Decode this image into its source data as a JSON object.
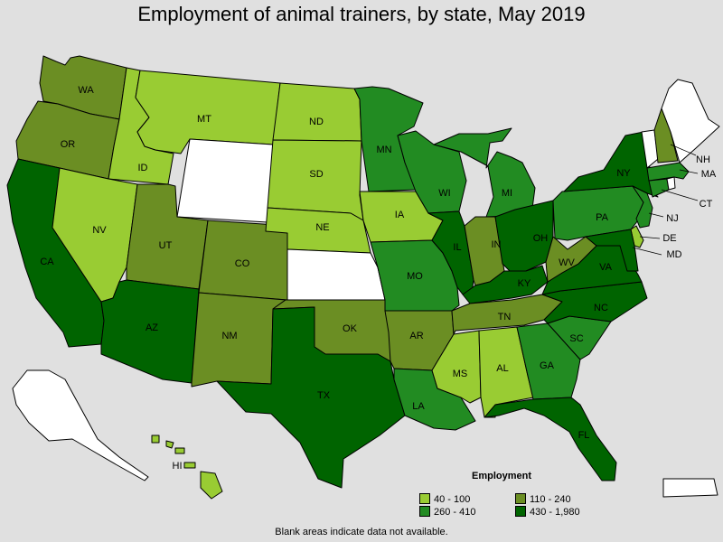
{
  "title": "Employment of animal trainers, by state, May 2019",
  "footnote": "Blank areas indicate data not available.",
  "legend": {
    "title": "Employment",
    "items": [
      {
        "label": "40 - 100",
        "color": "#99cc33"
      },
      {
        "label": "110 - 240",
        "color": "#6b8e23"
      },
      {
        "label": "260 - 410",
        "color": "#228b22"
      },
      {
        "label": "430 - 1,980",
        "color": "#006400"
      }
    ]
  },
  "chart_data": {
    "type": "choropleth",
    "no_data_color": "#ffffff",
    "classes": [
      "40 - 100",
      "110 - 240",
      "260 - 410",
      "430 - 1,980"
    ],
    "states": [
      {
        "abbr": "WA",
        "class": "110 - 240"
      },
      {
        "abbr": "OR",
        "class": "110 - 240"
      },
      {
        "abbr": "CA",
        "class": "430 - 1,980"
      },
      {
        "abbr": "ID",
        "class": "40 - 100"
      },
      {
        "abbr": "NV",
        "class": "40 - 100"
      },
      {
        "abbr": "MT",
        "class": "40 - 100"
      },
      {
        "abbr": "WY",
        "class": null
      },
      {
        "abbr": "UT",
        "class": "110 - 240"
      },
      {
        "abbr": "AZ",
        "class": "430 - 1,980"
      },
      {
        "abbr": "CO",
        "class": "110 - 240"
      },
      {
        "abbr": "NM",
        "class": "110 - 240"
      },
      {
        "abbr": "ND",
        "class": "40 - 100"
      },
      {
        "abbr": "SD",
        "class": "40 - 100"
      },
      {
        "abbr": "NE",
        "class": "40 - 100"
      },
      {
        "abbr": "KS",
        "class": null
      },
      {
        "abbr": "OK",
        "class": "110 - 240"
      },
      {
        "abbr": "TX",
        "class": "430 - 1,980"
      },
      {
        "abbr": "MN",
        "class": "260 - 410"
      },
      {
        "abbr": "IA",
        "class": "40 - 100"
      },
      {
        "abbr": "MO",
        "class": "260 - 410"
      },
      {
        "abbr": "AR",
        "class": "110 - 240"
      },
      {
        "abbr": "LA",
        "class": "260 - 410"
      },
      {
        "abbr": "WI",
        "class": "260 - 410"
      },
      {
        "abbr": "IL",
        "class": "430 - 1,980"
      },
      {
        "abbr": "MI",
        "class": "260 - 410"
      },
      {
        "abbr": "IN",
        "class": "110 - 240"
      },
      {
        "abbr": "OH",
        "class": "430 - 1,980"
      },
      {
        "abbr": "KY",
        "class": "430 - 1,980"
      },
      {
        "abbr": "TN",
        "class": "110 - 240"
      },
      {
        "abbr": "MS",
        "class": "40 - 100"
      },
      {
        "abbr": "AL",
        "class": "40 - 100"
      },
      {
        "abbr": "GA",
        "class": "260 - 410"
      },
      {
        "abbr": "FL",
        "class": "430 - 1,980"
      },
      {
        "abbr": "SC",
        "class": "260 - 410"
      },
      {
        "abbr": "NC",
        "class": "430 - 1,980"
      },
      {
        "abbr": "VA",
        "class": "430 - 1,980"
      },
      {
        "abbr": "WV",
        "class": "110 - 240"
      },
      {
        "abbr": "PA",
        "class": "260 - 410"
      },
      {
        "abbr": "NY",
        "class": "430 - 1,980"
      },
      {
        "abbr": "NJ",
        "class": "260 - 410"
      },
      {
        "abbr": "DE",
        "class": "40 - 100"
      },
      {
        "abbr": "MD",
        "class": "430 - 1,980"
      },
      {
        "abbr": "CT",
        "class": "260 - 410"
      },
      {
        "abbr": "MA",
        "class": "260 - 410"
      },
      {
        "abbr": "VT",
        "class": null
      },
      {
        "abbr": "NH",
        "class": "110 - 240"
      },
      {
        "abbr": "ME",
        "class": null
      },
      {
        "abbr": "RI",
        "class": null
      },
      {
        "abbr": "AK",
        "class": null
      },
      {
        "abbr": "HI",
        "class": "40 - 100"
      },
      {
        "abbr": "PR",
        "class": null
      }
    ]
  }
}
